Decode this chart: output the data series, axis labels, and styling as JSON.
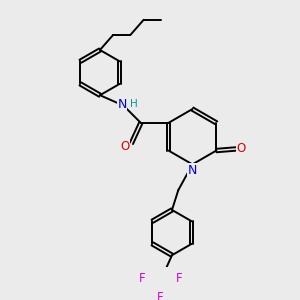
{
  "bg_color": "#ebebeb",
  "atom_colors": {
    "C": "#000000",
    "N": "#0000dd",
    "O": "#dd0000",
    "H": "#009999",
    "F": "#dd00dd"
  },
  "bond_lw": 1.4,
  "dbo": 0.055
}
